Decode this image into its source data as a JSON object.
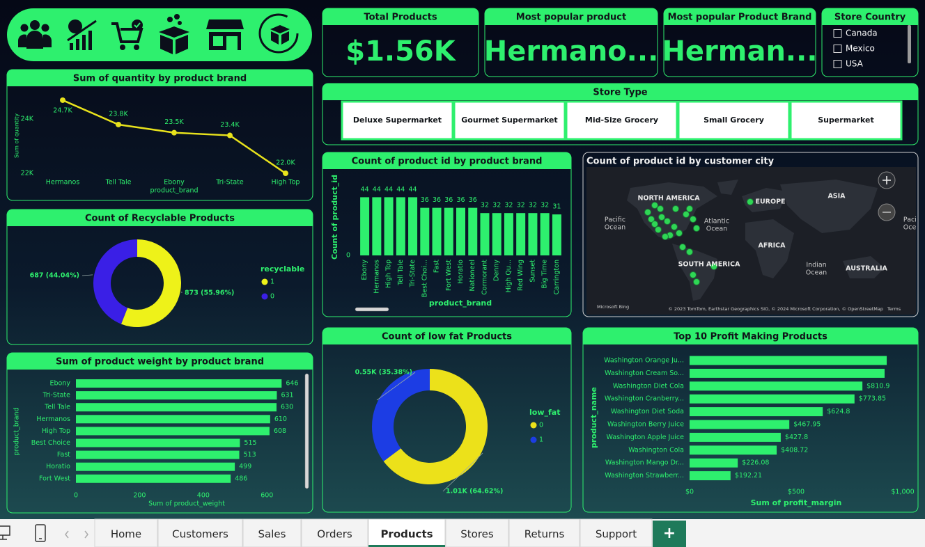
{
  "cards": [
    {
      "title": "Total Products",
      "value": "$1.56K"
    },
    {
      "title": "Most popular product",
      "value": "Hermano..."
    },
    {
      "title": "Most popular Product Brand",
      "value": "Herman..."
    }
  ],
  "store_country": {
    "title": "Store Country",
    "options": [
      "Canada",
      "Mexico",
      "USA"
    ]
  },
  "store_type": {
    "title": "Store Type",
    "options": [
      "Deluxe Supermarket",
      "Gourmet Supermarket",
      "Mid-Size Grocery",
      "Small Grocery",
      "Supermarket"
    ]
  },
  "map": {
    "title": "Count of product id by customer city",
    "labels": [
      [
        "NORTH AMERICA"
      ],
      [
        "EUROPE"
      ],
      [
        "ASIA"
      ],
      [
        "Pacific",
        "Ocean"
      ],
      [
        "Atlantic",
        "Ocean"
      ],
      [
        "AFRICA"
      ],
      [
        "SOUTH AMERICA"
      ],
      [
        "Indian",
        "Ocean"
      ],
      [
        "AUSTRALIA"
      ],
      [
        "Pacific",
        "Ocean"
      ]
    ],
    "provider": "Microsoft Bing",
    "attribution": "© 2023 TomTom, Earthstar Geographics SIO, © 2024 Microsoft Corporation, © OpenStreetMap",
    "terms": "Terms"
  },
  "tabs": {
    "items": [
      "Home",
      "Customers",
      "Sales",
      "Orders",
      "Products",
      "Stores",
      "Returns",
      "Support"
    ],
    "active": 4,
    "add": "+"
  },
  "chart_data": [
    {
      "type": "line",
      "title": "Sum of quantity by product brand",
      "x_label": "product_brand",
      "y_label": "Sum of quantity",
      "categories": [
        "Hermanos",
        "Tell Tale",
        "Ebony",
        "Tri-State",
        "High Top"
      ],
      "values": [
        24700,
        23800,
        23500,
        23400,
        22000
      ],
      "value_labels": [
        "24.7K",
        "23.8K",
        "23.5K",
        "23.4K",
        "22.0K"
      ],
      "color": "#e8e21c",
      "ylim": [
        21950,
        24750
      ],
      "yticks": [
        {
          "value": 24000,
          "label": "24K"
        },
        {
          "value": 22000,
          "label": "22K"
        }
      ]
    },
    {
      "type": "pie",
      "donut": true,
      "title": "Count of Recyclable Products",
      "legend_title": "recyclable",
      "categories": [
        "1",
        "0"
      ],
      "values": [
        873,
        687
      ],
      "value_labels": [
        "873 (55.96%)",
        "687 (44.04%)"
      ],
      "colors": [
        "#eef219",
        "#3a1fe6"
      ]
    },
    {
      "type": "bar",
      "orientation": "horizontal",
      "title": "Sum of product weight by product brand",
      "x_label": "Sum of product_weight",
      "y_label": "product_brand",
      "categories": [
        "Ebony",
        "Tri-State",
        "Tell Tale",
        "Hermanos",
        "High Top",
        "Best Choice",
        "Fast",
        "Horatio",
        "Fort West"
      ],
      "values": [
        646,
        631,
        630,
        610,
        608,
        515,
        513,
        499,
        486
      ],
      "color": "#2ef06e",
      "xlim": [
        0,
        700
      ],
      "xticks": [
        0,
        200,
        400,
        600
      ]
    },
    {
      "type": "bar",
      "orientation": "vertical",
      "title": "Count of product id by product brand",
      "x_label": "product_brand",
      "y_label": "Count of product_id",
      "categories": [
        "Ebony",
        "Hermanos",
        "High Top",
        "Tell Tale",
        "Tri-State",
        "Best Choi...",
        "Fast",
        "Fort West",
        "Horatio",
        "Nationeel",
        "Cormorant",
        "Denny",
        "High Qu...",
        "Red Wing",
        "Sunset",
        "Big Time",
        "Carrington"
      ],
      "values": [
        44,
        44,
        44,
        44,
        44,
        36,
        36,
        36,
        36,
        36,
        32,
        32,
        32,
        32,
        32,
        32,
        31
      ],
      "color": "#2ef06e",
      "ylim": [
        0,
        50
      ],
      "yticks": [
        0
      ]
    },
    {
      "type": "pie",
      "donut": true,
      "title": "Count of low fat Products",
      "legend_title": "low_fat",
      "categories": [
        "0",
        "1"
      ],
      "values": [
        1010,
        550
      ],
      "value_labels": [
        "1.01K (64.62%)",
        "0.55K (35.38%)"
      ],
      "colors": [
        "#ece11a",
        "#1c3de4"
      ]
    },
    {
      "type": "bar",
      "orientation": "horizontal",
      "title": "Top 10 Profit Making Products",
      "x_label": "Sum of profit_margin",
      "y_label": "product_name",
      "categories": [
        "Washington Orange Ju...",
        "Washington Cream So...",
        "Washington Diet Cola",
        "Washington Cranberry...",
        "Washington Diet Soda",
        "Washington Berry Juice",
        "Washington Apple Juice",
        "Washington Cola",
        "Washington Mango Dr...",
        "Washington Strawberr..."
      ],
      "values": [
        925,
        915,
        810.9,
        773.85,
        624.8,
        467.95,
        427.8,
        408.72,
        226.08,
        192.21
      ],
      "value_labels": [
        null,
        null,
        "$810.9",
        "$773.85",
        "$624.8",
        "$467.95",
        "$427.8",
        "$408.72",
        "$226.08",
        "$192.21"
      ],
      "color": "#2ef06e",
      "xlim": [
        0,
        1000
      ],
      "xticks": [
        {
          "value": 0,
          "label": "$0"
        },
        {
          "value": 500,
          "label": "$500"
        },
        {
          "value": 1000,
          "label": "$1,000"
        }
      ]
    }
  ]
}
